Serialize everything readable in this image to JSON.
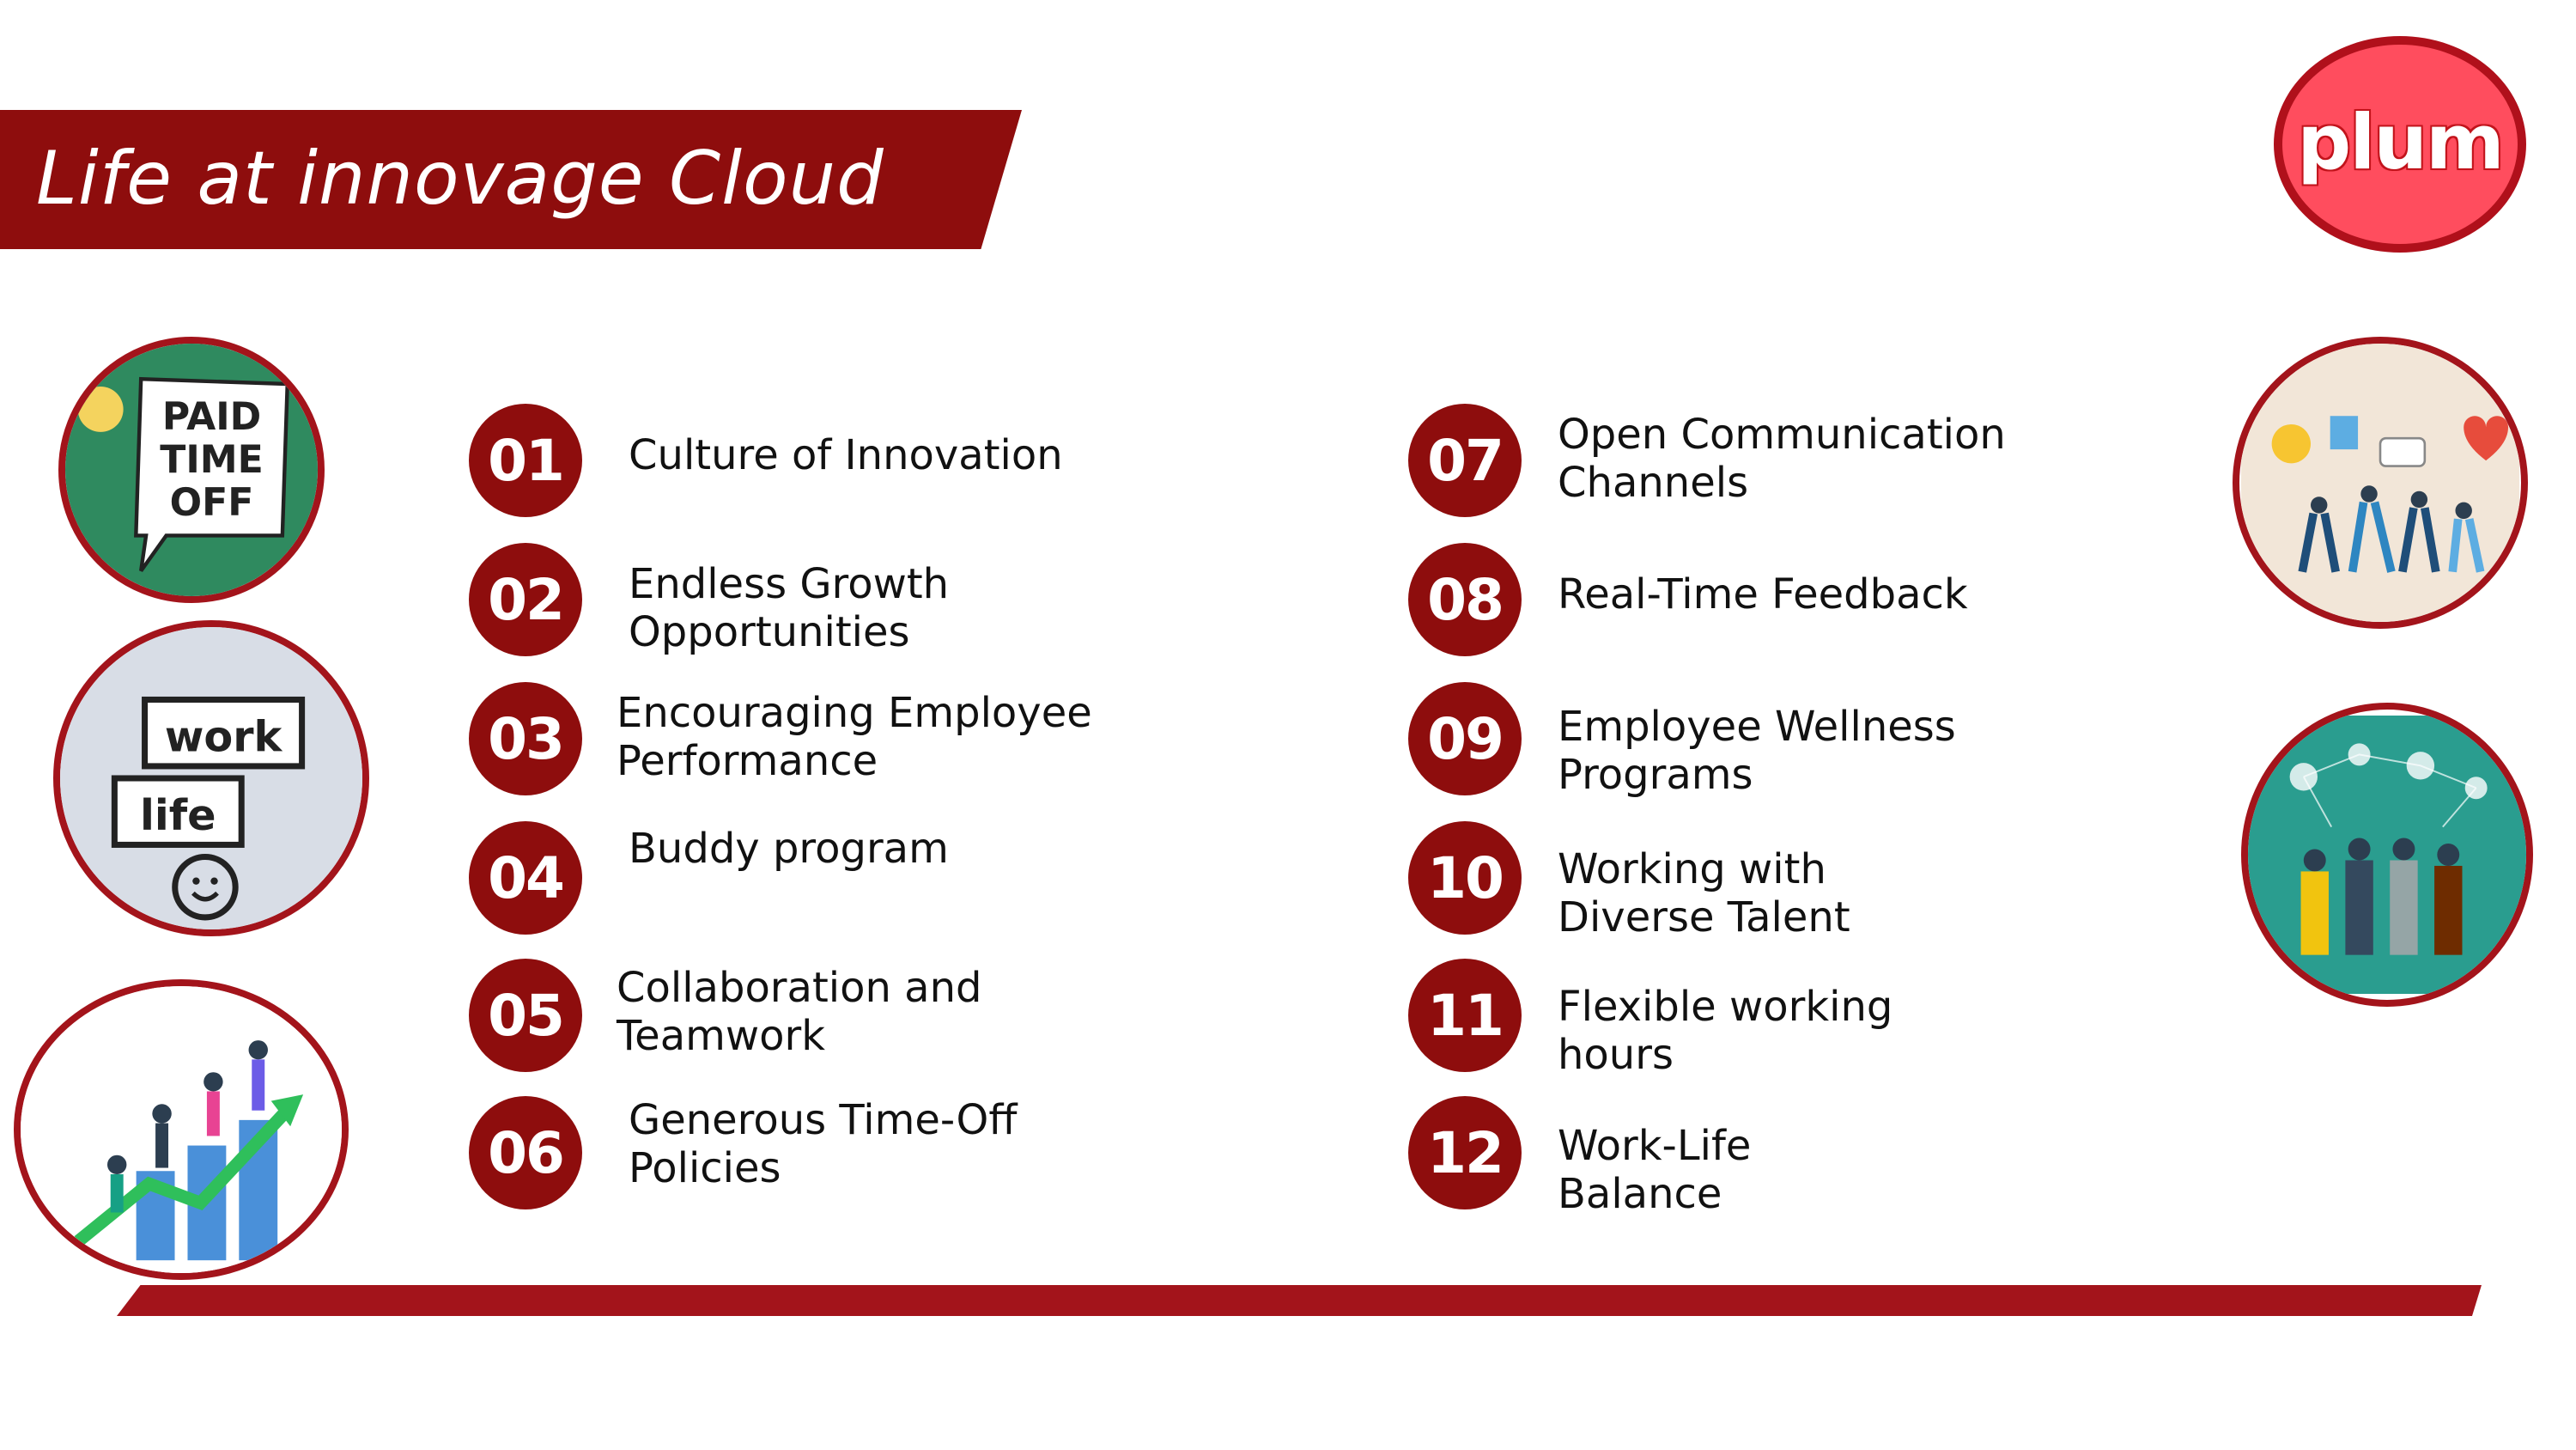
{
  "header": {
    "title": "Life at innovage Cloud",
    "logo_text": "plum"
  },
  "colors": {
    "brand_red": "#8e0d0d",
    "logo_pink": "#ff4d5e",
    "ring_red": "#a3141b"
  },
  "images": {
    "paid_time_off": [
      "PAID",
      "TIME",
      "OFF"
    ],
    "work_life": [
      "work",
      "life"
    ]
  },
  "items": [
    {
      "number": "01",
      "lines": [
        "Culture of Innovation"
      ]
    },
    {
      "number": "02",
      "lines": [
        "Endless Growth",
        "Opportunities"
      ]
    },
    {
      "number": "03",
      "lines": [
        "Encouraging Employee",
        "Performance"
      ]
    },
    {
      "number": "04",
      "lines": [
        "Buddy program"
      ]
    },
    {
      "number": "05",
      "lines": [
        "Collaboration and",
        "Teamwork"
      ]
    },
    {
      "number": "06",
      "lines": [
        "Generous Time-Off",
        "Policies"
      ]
    },
    {
      "number": "07",
      "lines": [
        "Open Communication",
        "Channels"
      ]
    },
    {
      "number": "08",
      "lines": [
        "Real-Time Feedback"
      ]
    },
    {
      "number": "09",
      "lines": [
        "Employee Wellness",
        "Programs"
      ]
    },
    {
      "number": "10",
      "lines": [
        "Working with",
        "Diverse Talent"
      ]
    },
    {
      "number": "11",
      "lines": [
        "Flexible working",
        "hours"
      ]
    },
    {
      "number": "12",
      "lines": [
        "Work-Life",
        "Balance"
      ]
    }
  ]
}
